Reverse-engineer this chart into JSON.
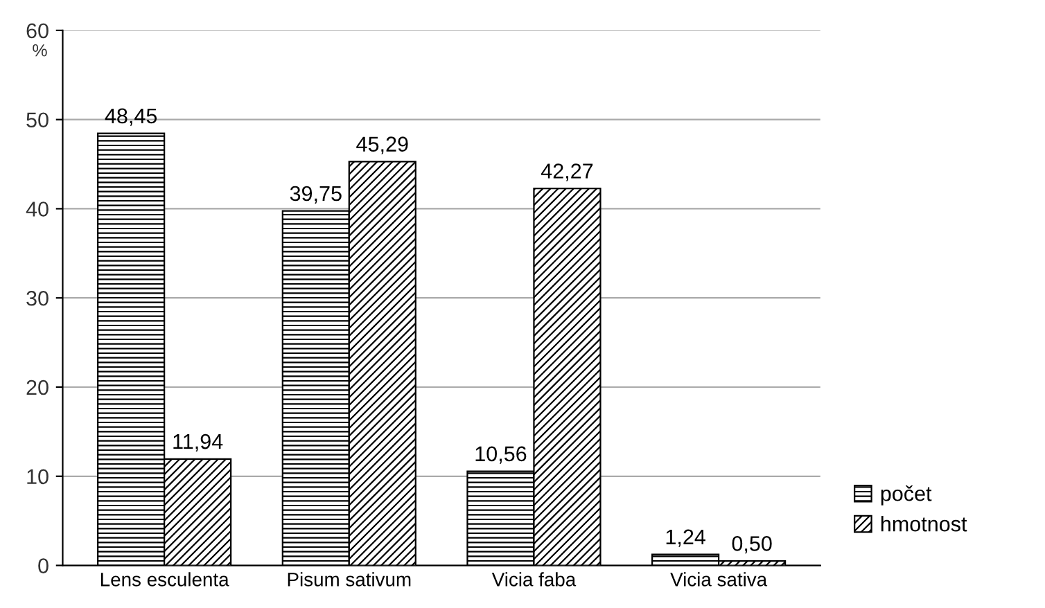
{
  "chart_data": {
    "type": "bar",
    "ylabel": "%",
    "categories": [
      "Lens esculenta",
      "Pisum sativum",
      "Vicia faba",
      "Vicia sativa"
    ],
    "series": [
      {
        "name": "počet",
        "color": "#000000",
        "values": [
          48.45,
          39.75,
          10.56,
          1.24
        ],
        "value_labels": [
          "48,45",
          "39,75",
          "10,56",
          "1,24"
        ]
      },
      {
        "name": "hmotnost",
        "color": "#000000",
        "values": [
          11.94,
          45.29,
          42.27,
          0.5
        ],
        "value_labels": [
          "11,94",
          "45,29",
          "42,27",
          "0,50"
        ]
      }
    ],
    "ylim": [
      0,
      60
    ],
    "yticks": [
      0,
      10,
      20,
      30,
      40,
      50,
      60
    ],
    "grid": "y",
    "legend": "bottom right"
  }
}
